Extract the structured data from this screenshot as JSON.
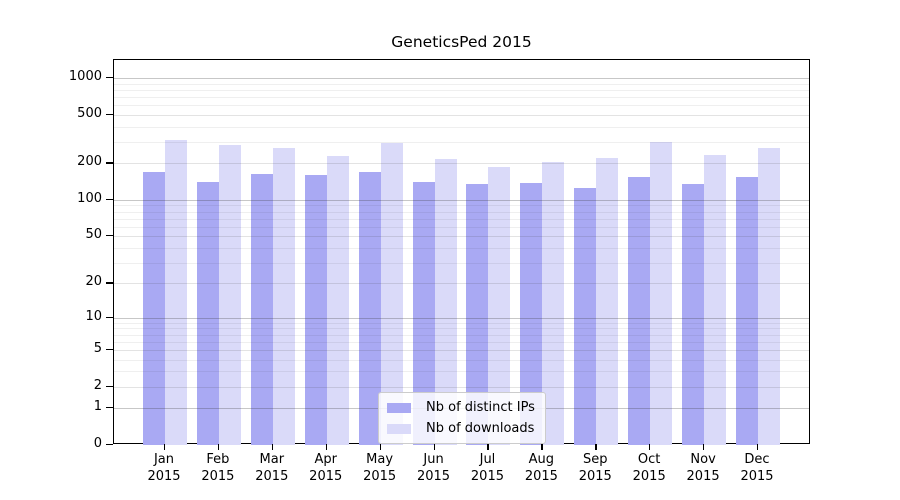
{
  "chart_data": {
    "type": "bar",
    "title": "GeneticsPed 2015",
    "year": "2015",
    "categories": [
      "Jan",
      "Feb",
      "Mar",
      "Apr",
      "May",
      "Jun",
      "Jul",
      "Aug",
      "Sep",
      "Oct",
      "Nov",
      "Dec"
    ],
    "series": [
      {
        "name": "Nb of distinct IPs",
        "color": "#a9a9f3",
        "values": [
          170,
          140,
          163,
          160,
          170,
          140,
          134,
          139,
          126,
          154,
          136,
          154
        ]
      },
      {
        "name": "Nb of downloads",
        "color": "#dadaf9",
        "values": [
          311,
          283,
          267,
          230,
          295,
          217,
          186,
          206,
          220,
          299,
          233,
          266
        ]
      }
    ],
    "yticks": [
      0,
      1,
      2,
      5,
      10,
      20,
      50,
      100,
      200,
      500,
      1000
    ],
    "scale": "log1p",
    "ylim": [
      0,
      1400
    ],
    "xlabel": "",
    "ylabel": "",
    "grid": true,
    "legend_position": "lower-center"
  }
}
